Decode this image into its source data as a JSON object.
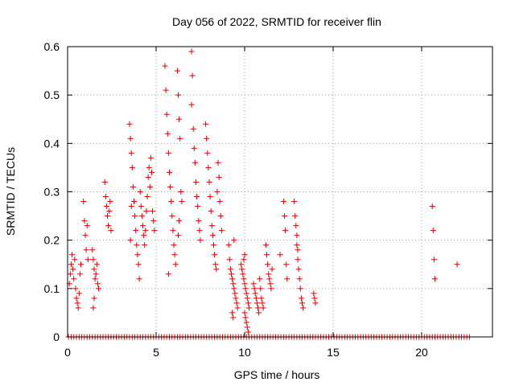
{
  "chart_data": {
    "type": "scatter",
    "title": "Day 056 of 2022, SRMTID for receiver flin",
    "xlabel": "GPS time / hours",
    "ylabel": "SRMTID / TECUs",
    "xlim": [
      0,
      24
    ],
    "ylim": [
      0,
      0.6
    ],
    "x_ticks": [
      0,
      5,
      10,
      15,
      20
    ],
    "y_ticks": [
      0,
      0.1,
      0.2,
      0.3,
      0.4,
      0.5,
      0.6
    ],
    "x_tick_labels": [
      "0",
      "5",
      "10",
      "15",
      "20"
    ],
    "y_tick_labels": [
      "0",
      "0.1",
      "0.2",
      "0.3",
      "0.4",
      "0.5",
      "0.6"
    ],
    "grid": true,
    "marker": "+",
    "color": "#dd0000",
    "series": [
      {
        "name": "SRMTID",
        "points": [
          [
            0.1,
            0.11
          ],
          [
            0.15,
            0.13
          ],
          [
            0.2,
            0.15
          ],
          [
            0.25,
            0.17
          ],
          [
            0.3,
            0.14
          ],
          [
            0.35,
            0.12
          ],
          [
            0.4,
            0.16
          ],
          [
            0.45,
            0.1
          ],
          [
            0.5,
            0.08
          ],
          [
            0.55,
            0.07
          ],
          [
            0.6,
            0.06
          ],
          [
            0.65,
            0.09
          ],
          [
            0.7,
            0.13
          ],
          [
            0.75,
            0.15
          ],
          [
            0.9,
            0.28
          ],
          [
            0.95,
            0.24
          ],
          [
            1.0,
            0.21
          ],
          [
            1.05,
            0.18
          ],
          [
            1.1,
            0.23
          ],
          [
            1.15,
            0.16
          ],
          [
            1.4,
            0.18
          ],
          [
            1.45,
            0.16
          ],
          [
            1.5,
            0.14
          ],
          [
            1.55,
            0.12
          ],
          [
            1.6,
            0.13
          ],
          [
            1.65,
            0.15
          ],
          [
            1.7,
            0.11
          ],
          [
            1.75,
            0.1
          ],
          [
            1.5,
            0.08
          ],
          [
            1.45,
            0.06
          ],
          [
            2.1,
            0.32
          ],
          [
            2.15,
            0.29
          ],
          [
            2.2,
            0.27
          ],
          [
            2.25,
            0.25
          ],
          [
            2.3,
            0.23
          ],
          [
            2.35,
            0.26
          ],
          [
            2.4,
            0.28
          ],
          [
            2.45,
            0.22
          ],
          [
            3.5,
            0.44
          ],
          [
            3.55,
            0.41
          ],
          [
            3.6,
            0.38
          ],
          [
            3.65,
            0.35
          ],
          [
            3.7,
            0.31
          ],
          [
            3.75,
            0.28
          ],
          [
            3.8,
            0.25
          ],
          [
            3.85,
            0.22
          ],
          [
            3.9,
            0.19
          ],
          [
            3.95,
            0.17
          ],
          [
            4.0,
            0.15
          ],
          [
            4.05,
            0.12
          ],
          [
            3.55,
            0.2
          ],
          [
            3.6,
            0.27
          ],
          [
            4.1,
            0.3
          ],
          [
            4.15,
            0.27
          ],
          [
            4.2,
            0.25
          ],
          [
            4.25,
            0.23
          ],
          [
            4.3,
            0.21
          ],
          [
            4.35,
            0.19
          ],
          [
            4.4,
            0.22
          ],
          [
            4.45,
            0.26
          ],
          [
            4.5,
            0.29
          ],
          [
            4.55,
            0.33
          ],
          [
            4.6,
            0.35
          ],
          [
            4.65,
            0.31
          ],
          [
            4.7,
            0.37
          ],
          [
            4.75,
            0.34
          ],
          [
            4.8,
            0.26
          ],
          [
            4.85,
            0.24
          ],
          [
            4.9,
            0.22
          ],
          [
            5.5,
            0.56
          ],
          [
            5.55,
            0.51
          ],
          [
            5.6,
            0.46
          ],
          [
            5.65,
            0.42
          ],
          [
            5.7,
            0.38
          ],
          [
            5.75,
            0.34
          ],
          [
            5.8,
            0.31
          ],
          [
            5.85,
            0.28
          ],
          [
            5.9,
            0.25
          ],
          [
            5.95,
            0.22
          ],
          [
            6.0,
            0.19
          ],
          [
            6.05,
            0.17
          ],
          [
            6.1,
            0.15
          ],
          [
            5.7,
            0.13
          ],
          [
            6.2,
            0.55
          ],
          [
            6.25,
            0.5
          ],
          [
            6.3,
            0.45
          ],
          [
            6.35,
            0.41
          ],
          [
            6.4,
            0.3
          ],
          [
            6.45,
            0.28
          ],
          [
            6.3,
            0.24
          ],
          [
            6.25,
            0.21
          ],
          [
            7.0,
            0.59
          ],
          [
            7.05,
            0.54
          ],
          [
            7.0,
            0.48
          ],
          [
            7.1,
            0.43
          ],
          [
            7.15,
            0.39
          ],
          [
            7.2,
            0.36
          ],
          [
            7.25,
            0.32
          ],
          [
            7.3,
            0.29
          ],
          [
            7.35,
            0.27
          ],
          [
            7.4,
            0.24
          ],
          [
            7.45,
            0.22
          ],
          [
            7.5,
            0.2
          ],
          [
            7.8,
            0.44
          ],
          [
            7.85,
            0.41
          ],
          [
            7.9,
            0.38
          ],
          [
            7.95,
            0.35
          ],
          [
            8.0,
            0.32
          ],
          [
            8.05,
            0.29
          ],
          [
            8.1,
            0.26
          ],
          [
            8.15,
            0.23
          ],
          [
            8.2,
            0.21
          ],
          [
            8.25,
            0.19
          ],
          [
            8.3,
            0.17
          ],
          [
            8.35,
            0.15
          ],
          [
            8.4,
            0.14
          ],
          [
            8.45,
            0.3
          ],
          [
            8.5,
            0.36
          ],
          [
            8.55,
            0.33
          ],
          [
            8.6,
            0.28
          ],
          [
            8.65,
            0.25
          ],
          [
            8.7,
            0.22
          ],
          [
            9.1,
            0.19
          ],
          [
            9.15,
            0.16
          ],
          [
            9.2,
            0.14
          ],
          [
            9.25,
            0.13
          ],
          [
            9.3,
            0.12
          ],
          [
            9.35,
            0.11
          ],
          [
            9.4,
            0.1
          ],
          [
            9.45,
            0.09
          ],
          [
            9.5,
            0.08
          ],
          [
            9.55,
            0.07
          ],
          [
            9.6,
            0.06
          ],
          [
            9.3,
            0.05
          ],
          [
            9.35,
            0.04
          ],
          [
            9.4,
            0.2
          ],
          [
            9.8,
            0.15
          ],
          [
            9.85,
            0.14
          ],
          [
            9.9,
            0.13
          ],
          [
            9.95,
            0.12
          ],
          [
            10.0,
            0.11
          ],
          [
            10.05,
            0.1
          ],
          [
            10.1,
            0.09
          ],
          [
            10.15,
            0.08
          ],
          [
            10.2,
            0.07
          ],
          [
            10.25,
            0.06
          ],
          [
            10.0,
            0.05
          ],
          [
            10.05,
            0.04
          ],
          [
            10.1,
            0.03
          ],
          [
            10.15,
            0.02
          ],
          [
            10.2,
            0.01
          ],
          [
            9.95,
            0.16
          ],
          [
            10.0,
            0.17
          ],
          [
            10.5,
            0.11
          ],
          [
            10.55,
            0.1
          ],
          [
            10.6,
            0.09
          ],
          [
            10.65,
            0.08
          ],
          [
            10.7,
            0.07
          ],
          [
            10.75,
            0.06
          ],
          [
            10.8,
            0.05
          ],
          [
            10.85,
            0.12
          ],
          [
            10.9,
            0.1
          ],
          [
            10.95,
            0.08
          ],
          [
            11.0,
            0.07
          ],
          [
            11.05,
            0.06
          ],
          [
            11.2,
            0.19
          ],
          [
            11.25,
            0.17
          ],
          [
            11.3,
            0.15
          ],
          [
            11.35,
            0.13
          ],
          [
            11.4,
            0.12
          ],
          [
            11.45,
            0.11
          ],
          [
            11.5,
            0.1
          ],
          [
            11.55,
            0.14
          ],
          [
            12.0,
            0.17
          ],
          [
            12.2,
            0.28
          ],
          [
            12.25,
            0.25
          ],
          [
            12.3,
            0.22
          ],
          [
            12.35,
            0.15
          ],
          [
            12.4,
            0.12
          ],
          [
            12.8,
            0.28
          ],
          [
            12.85,
            0.25
          ],
          [
            12.9,
            0.23
          ],
          [
            12.95,
            0.19
          ],
          [
            13.0,
            0.16
          ],
          [
            13.05,
            0.14
          ],
          [
            13.1,
            0.12
          ],
          [
            13.15,
            0.1
          ],
          [
            13.2,
            0.08
          ],
          [
            13.25,
            0.07
          ],
          [
            13.3,
            0.06
          ],
          [
            12.95,
            0.21
          ],
          [
            13.0,
            0.18
          ],
          [
            13.9,
            0.09
          ],
          [
            13.95,
            0.08
          ],
          [
            14.0,
            0.07
          ],
          [
            20.6,
            0.27
          ],
          [
            20.65,
            0.22
          ],
          [
            20.7,
            0.16
          ],
          [
            20.75,
            0.12
          ],
          [
            22.0,
            0.15
          ]
        ]
      }
    ],
    "zero_line_x": [
      0.05,
      0.2,
      0.35,
      0.5,
      0.65,
      0.8,
      0.95,
      1.1,
      1.25,
      1.4,
      1.55,
      1.7,
      1.85,
      2.0,
      2.15,
      2.3,
      2.45,
      2.6,
      2.75,
      2.9,
      3.05,
      3.2,
      3.35,
      3.5,
      3.65,
      3.8,
      3.95,
      4.1,
      4.25,
      4.4,
      4.55,
      4.7,
      4.85,
      5.0,
      5.15,
      5.3,
      5.45,
      5.6,
      5.75,
      5.9,
      6.05,
      6.2,
      6.35,
      6.5,
      6.65,
      6.8,
      6.95,
      7.1,
      7.25,
      7.4,
      7.55,
      7.7,
      7.85,
      8.0,
      8.15,
      8.3,
      8.45,
      8.6,
      8.75,
      8.9,
      9.05,
      9.2,
      9.35,
      9.5,
      9.65,
      9.8,
      9.95,
      10.1,
      10.25,
      10.4,
      10.55,
      10.7,
      10.85,
      11.0,
      11.15,
      11.3,
      11.45,
      11.6,
      11.75,
      11.9,
      12.05,
      12.2,
      12.35,
      12.5,
      12.65,
      12.8,
      12.95,
      13.1,
      13.25,
      13.4,
      13.55,
      13.7,
      13.85,
      14.0,
      14.15,
      14.3,
      14.45,
      14.6,
      14.75,
      14.9,
      15.05,
      15.2,
      15.35,
      15.5,
      15.65,
      15.8,
      15.95,
      16.1,
      16.25,
      16.4,
      16.55,
      16.7,
      16.85,
      17.0,
      17.15,
      17.3,
      17.45,
      17.6,
      17.75,
      17.9,
      18.05,
      18.2,
      18.35,
      18.5,
      18.65,
      18.8,
      18.95,
      19.1,
      19.25,
      19.4,
      19.55,
      19.7,
      19.85,
      20.0,
      20.15,
      20.3,
      20.45,
      20.6,
      20.75,
      20.9,
      21.05,
      21.2,
      21.35,
      21.5,
      21.65,
      21.8,
      21.95,
      22.1,
      22.25,
      22.4,
      22.55,
      22.7
    ]
  }
}
